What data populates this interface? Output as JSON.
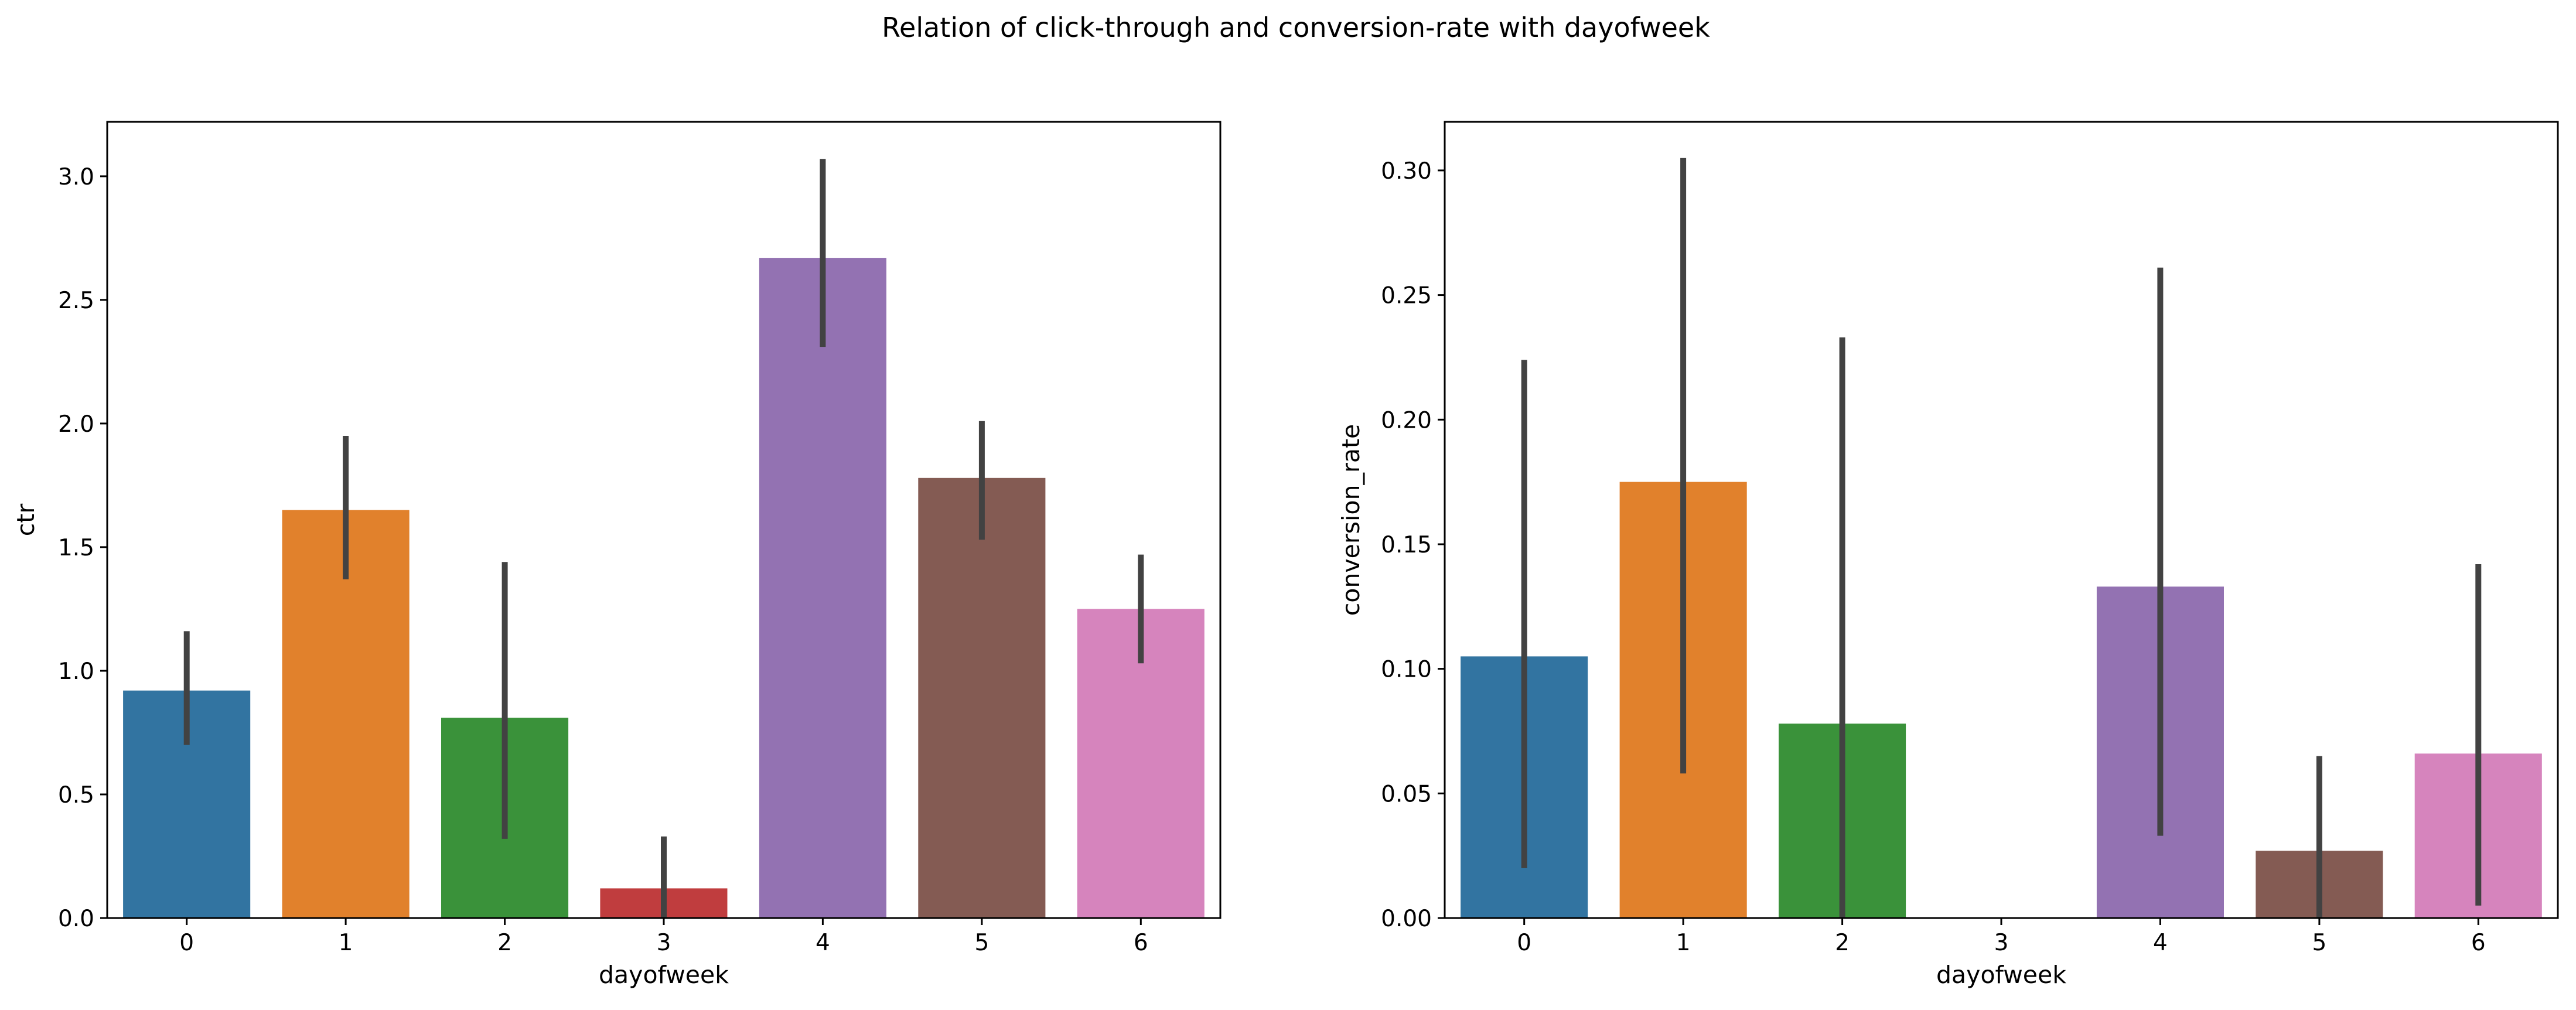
{
  "figure": {
    "suptitle": "Relation of click-through and conversion-rate with dayofweek"
  },
  "palette": [
    "#3274a1",
    "#e1812c",
    "#3a923a",
    "#c03d3e",
    "#9372b2",
    "#845b53",
    "#d684bd"
  ],
  "errorbar_color": "#424242",
  "chart_data": [
    {
      "type": "bar",
      "title": "",
      "xlabel": "dayofweek",
      "ylabel": "ctr",
      "categories": [
        "0",
        "1",
        "2",
        "3",
        "4",
        "5",
        "6"
      ],
      "values": [
        0.92,
        1.65,
        0.81,
        0.12,
        2.67,
        1.78,
        1.25
      ],
      "error_low": [
        0.7,
        1.37,
        0.32,
        0.0,
        2.31,
        1.53,
        1.03
      ],
      "error_high": [
        1.16,
        1.95,
        1.44,
        0.33,
        3.07,
        2.01,
        1.47
      ],
      "ylim": [
        0,
        3.22
      ],
      "yticks": [
        {
          "value": 0.0,
          "label": "0.0"
        },
        {
          "value": 0.5,
          "label": "0.5"
        },
        {
          "value": 1.0,
          "label": "1.0"
        },
        {
          "value": 1.5,
          "label": "1.5"
        },
        {
          "value": 2.0,
          "label": "2.0"
        },
        {
          "value": 2.5,
          "label": "2.5"
        },
        {
          "value": 3.0,
          "label": "3.0"
        }
      ],
      "grid": false,
      "legend": "none"
    },
    {
      "type": "bar",
      "title": "",
      "xlabel": "dayofweek",
      "ylabel": "conversion_rate",
      "categories": [
        "0",
        "1",
        "2",
        "3",
        "4",
        "5",
        "6"
      ],
      "values": [
        0.105,
        0.175,
        0.078,
        0.0,
        0.133,
        0.027,
        0.066
      ],
      "error_low": [
        0.02,
        0.058,
        0.0,
        0.0,
        0.033,
        0.0,
        0.005
      ],
      "error_high": [
        0.224,
        0.305,
        0.233,
        0.0,
        0.261,
        0.065,
        0.142
      ],
      "ylim": [
        0,
        0.3195
      ],
      "yticks": [
        {
          "value": 0.0,
          "label": "0.00"
        },
        {
          "value": 0.05,
          "label": "0.05"
        },
        {
          "value": 0.1,
          "label": "0.10"
        },
        {
          "value": 0.15,
          "label": "0.15"
        },
        {
          "value": 0.2,
          "label": "0.20"
        },
        {
          "value": 0.25,
          "label": "0.25"
        },
        {
          "value": 0.3,
          "label": "0.30"
        }
      ],
      "grid": false,
      "legend": "none"
    }
  ]
}
